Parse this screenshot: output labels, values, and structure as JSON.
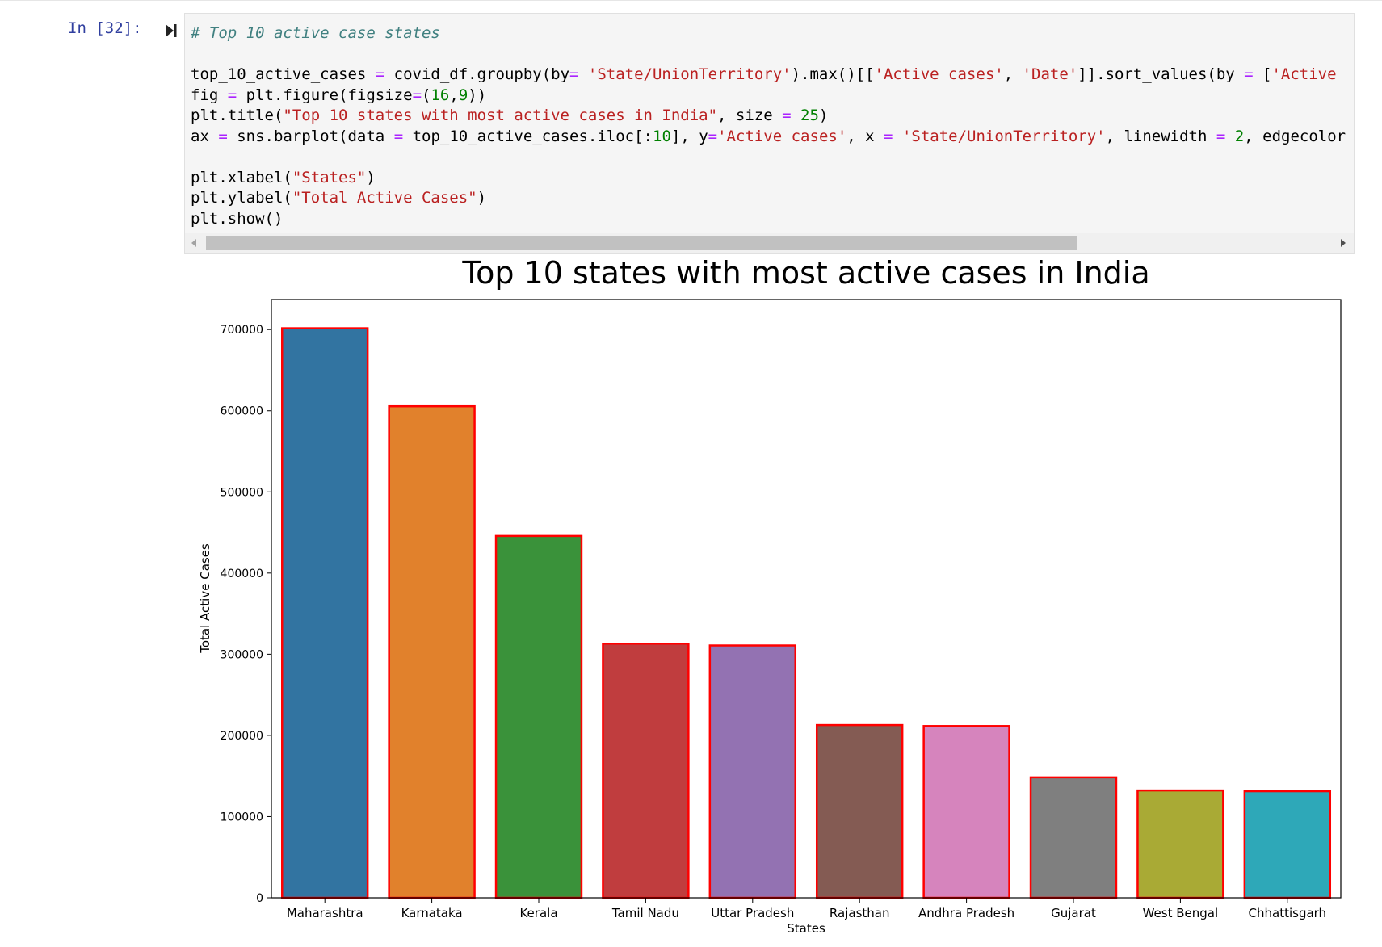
{
  "cell": {
    "prompt": "In [32]:",
    "code_lines": [
      [
        {
          "t": "# Top 10 active case states",
          "c": "cm"
        }
      ],
      [],
      [
        {
          "t": "top_10_active_cases "
        },
        {
          "t": "=",
          "c": "op"
        },
        {
          "t": " covid_df.groupby(by"
        },
        {
          "t": "=",
          "c": "op"
        },
        {
          "t": " "
        },
        {
          "t": "'State/UnionTerritory'",
          "c": "str"
        },
        {
          "t": ").max()[["
        },
        {
          "t": "'Active cases'",
          "c": "str"
        },
        {
          "t": ", "
        },
        {
          "t": "'Date'",
          "c": "str"
        },
        {
          "t": "]].sort_values(by "
        },
        {
          "t": "=",
          "c": "op"
        },
        {
          "t": " ["
        },
        {
          "t": "'Active",
          "c": "str"
        }
      ],
      [
        {
          "t": "fig "
        },
        {
          "t": "=",
          "c": "op"
        },
        {
          "t": " plt.figure(figsize"
        },
        {
          "t": "=",
          "c": "op"
        },
        {
          "t": "("
        },
        {
          "t": "16",
          "c": "num"
        },
        {
          "t": ","
        },
        {
          "t": "9",
          "c": "num"
        },
        {
          "t": "))"
        }
      ],
      [
        {
          "t": "plt.title("
        },
        {
          "t": "\"Top 10 states with most active cases in India\"",
          "c": "str"
        },
        {
          "t": ", size "
        },
        {
          "t": "=",
          "c": "op"
        },
        {
          "t": " "
        },
        {
          "t": "25",
          "c": "num"
        },
        {
          "t": ")"
        }
      ],
      [
        {
          "t": "ax "
        },
        {
          "t": "=",
          "c": "op"
        },
        {
          "t": " sns.barplot(data "
        },
        {
          "t": "=",
          "c": "op"
        },
        {
          "t": " top_10_active_cases.iloc[:"
        },
        {
          "t": "10",
          "c": "num"
        },
        {
          "t": "], y"
        },
        {
          "t": "=",
          "c": "op"
        },
        {
          "t": "'Active cases'",
          "c": "str"
        },
        {
          "t": ", x "
        },
        {
          "t": "=",
          "c": "op"
        },
        {
          "t": " "
        },
        {
          "t": "'State/UnionTerritory'",
          "c": "str"
        },
        {
          "t": ", linewidth "
        },
        {
          "t": "=",
          "c": "op"
        },
        {
          "t": " "
        },
        {
          "t": "2",
          "c": "num"
        },
        {
          "t": ", edgecolor"
        }
      ],
      [],
      [
        {
          "t": "plt.xlabel("
        },
        {
          "t": "\"States\"",
          "c": "str"
        },
        {
          "t": ")"
        }
      ],
      [
        {
          "t": "plt.ylabel("
        },
        {
          "t": "\"Total Active Cases\"",
          "c": "str"
        },
        {
          "t": ")"
        }
      ],
      [
        {
          "t": "plt.show()"
        }
      ]
    ]
  },
  "chart_data": {
    "type": "bar",
    "title": "Top 10 states with most active cases in India",
    "xlabel": "States",
    "ylabel": "Total Active Cases",
    "categories": [
      "Maharashtra",
      "Karnataka",
      "Kerala",
      "Tamil Nadu",
      "Uttar Pradesh",
      "Rajasthan",
      "Andhra Pradesh",
      "Gujarat",
      "West Bengal",
      "Chhattisgarh"
    ],
    "values": [
      701614,
      605515,
      445692,
      313048,
      310783,
      212753,
      211554,
      148297,
      132181,
      131245
    ],
    "ylim": [
      0,
      737000
    ],
    "yticks": [
      0,
      100000,
      200000,
      300000,
      400000,
      500000,
      600000,
      700000
    ],
    "ytick_labels": [
      "0",
      "100000",
      "200000",
      "300000",
      "400000",
      "500000",
      "600000",
      "700000"
    ],
    "bar_colors": [
      "#3274a1",
      "#e1812c",
      "#3a923a",
      "#c03d3e",
      "#9372b2",
      "#845b53",
      "#d684bd",
      "#7f7f7f",
      "#a9aa35",
      "#2ea8b8"
    ],
    "edge_color": "#ff0000",
    "grid": false,
    "legend": "none"
  }
}
